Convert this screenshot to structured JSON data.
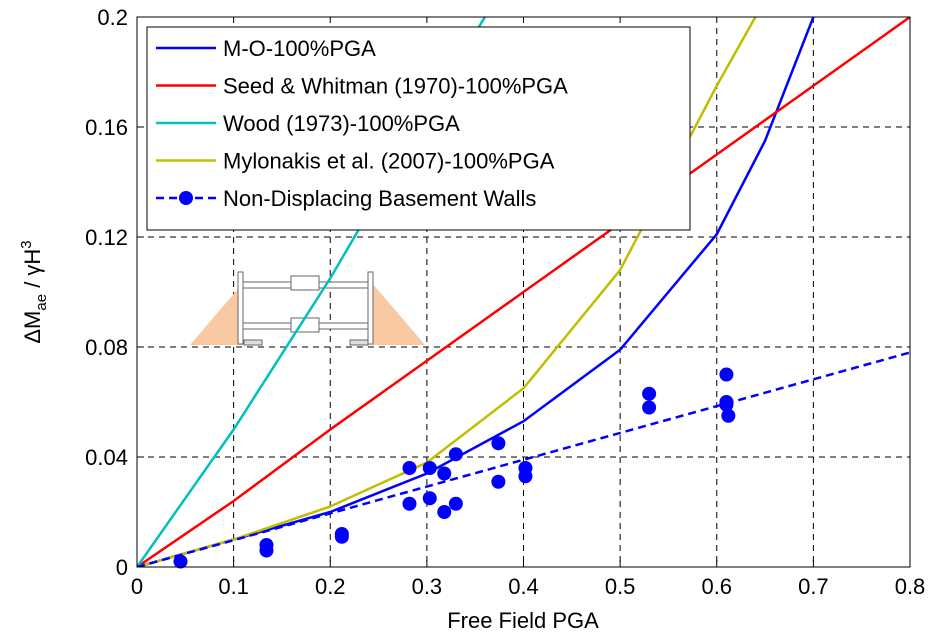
{
  "chart_data": {
    "type": "line",
    "xlabel": "Free Field PGA",
    "ylabel_parts": [
      "ΔM",
      "ae",
      " / γH",
      "3"
    ],
    "xlim": [
      0,
      0.8
    ],
    "ylim": [
      0,
      0.2
    ],
    "xticks": [
      0,
      0.1,
      0.2,
      0.3,
      0.4,
      0.5,
      0.6,
      0.7,
      0.8
    ],
    "yticks": [
      0,
      0.04,
      0.08,
      0.12,
      0.16,
      0.2
    ],
    "grid": true,
    "legend": "upper left",
    "series": [
      {
        "name": "M-O-100%PGA",
        "color": "#0000ff",
        "style": "solid",
        "x": [
          0,
          0.1,
          0.2,
          0.3,
          0.4,
          0.5,
          0.6,
          0.65,
          0.7
        ],
        "values": [
          0,
          0.01,
          0.02,
          0.034,
          0.053,
          0.079,
          0.121,
          0.155,
          0.2
        ]
      },
      {
        "name": "Seed & Whitman (1970)-100%PGA",
        "color": "#ff0000",
        "style": "solid",
        "x": [
          0,
          0.1,
          0.2,
          0.3,
          0.4,
          0.5,
          0.6,
          0.7,
          0.8
        ],
        "values": [
          0,
          0.024,
          0.05,
          0.075,
          0.1,
          0.125,
          0.15,
          0.175,
          0.2
        ]
      },
      {
        "name": "Wood (1973)-100%PGA",
        "color": "#00bfbf",
        "style": "solid",
        "x": [
          0,
          0.1,
          0.2,
          0.3,
          0.36
        ],
        "values": [
          0,
          0.05,
          0.105,
          0.165,
          0.2
        ]
      },
      {
        "name": "Mylonakis et al. (2007)-100%PGA",
        "color": "#bfbf00",
        "style": "solid",
        "x": [
          0,
          0.1,
          0.2,
          0.3,
          0.4,
          0.5,
          0.6,
          0.64
        ],
        "values": [
          0,
          0.01,
          0.022,
          0.038,
          0.065,
          0.108,
          0.175,
          0.2
        ]
      },
      {
        "name": "Non-Displacing Basement Walls",
        "color": "#0000ff",
        "style": "dashed",
        "marker": "circle",
        "x": [
          0,
          0.8
        ],
        "values": [
          0,
          0.078
        ],
        "markers_x": [
          0.045,
          0.134,
          0.134,
          0.212,
          0.212,
          0.282,
          0.282,
          0.303,
          0.303,
          0.318,
          0.318,
          0.33,
          0.33,
          0.374,
          0.374,
          0.402,
          0.402,
          0.53,
          0.53,
          0.61,
          0.61,
          0.61,
          0.612
        ],
        "markers_y": [
          0.002,
          0.008,
          0.006,
          0.012,
          0.011,
          0.036,
          0.023,
          0.036,
          0.025,
          0.034,
          0.02,
          0.041,
          0.023,
          0.045,
          0.031,
          0.036,
          0.033,
          0.063,
          0.058,
          0.07,
          0.06,
          0.059,
          0.055
        ]
      }
    ]
  }
}
